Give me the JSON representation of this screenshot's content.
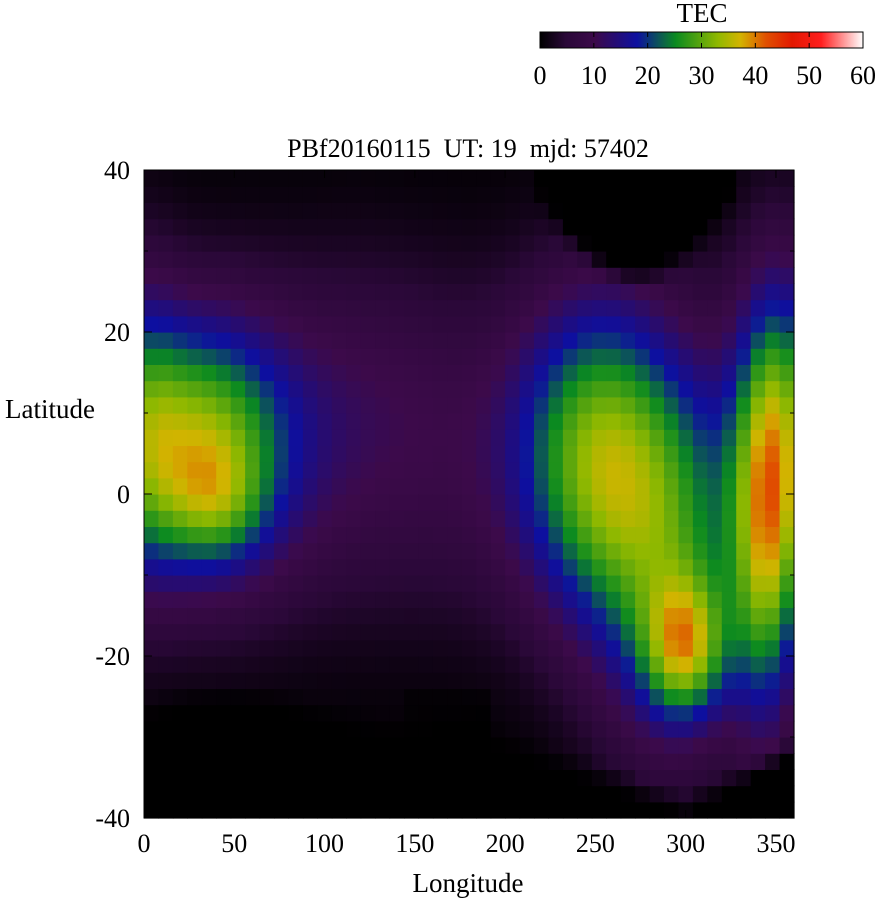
{
  "chart_data": {
    "type": "heatmap",
    "title": "PBf20160115  UT: 19  mjd: 57402",
    "xlabel": "Longitude",
    "ylabel": "Latitude",
    "xlim": [
      0,
      360
    ],
    "ylim": [
      -40,
      40
    ],
    "x_ticks": [
      "0",
      "50",
      "100",
      "150",
      "200",
      "250",
      "300",
      "350"
    ],
    "y_ticks": [
      "40",
      "20",
      "0",
      "-20",
      "-40"
    ],
    "colorbar": {
      "label": "TEC",
      "range": [
        0,
        60
      ],
      "ticks": [
        "0",
        "10",
        "20",
        "30",
        "40",
        "50",
        "60"
      ],
      "palette": [
        "#000000",
        "#3c0a4a",
        "#0d0fa0",
        "#0b8a20",
        "#c8cc00",
        "#e21800",
        "#ff1e1e",
        "#ffffff"
      ]
    },
    "grid": {
      "lon_step": 8,
      "lat_step": 2,
      "approximate": true,
      "features": [
        {
          "kind": "crest",
          "lon": 30,
          "lat": 0,
          "tec": 36,
          "note": "African equatorial peak"
        },
        {
          "kind": "crest",
          "lon": 300,
          "lat": -19,
          "tec": 47,
          "note": "American southern crest"
        },
        {
          "kind": "crest",
          "lon": 345,
          "lat": -3,
          "tec": 43
        },
        {
          "kind": "crest",
          "lon": 265,
          "lat": 2,
          "tec": 37
        }
      ]
    }
  }
}
